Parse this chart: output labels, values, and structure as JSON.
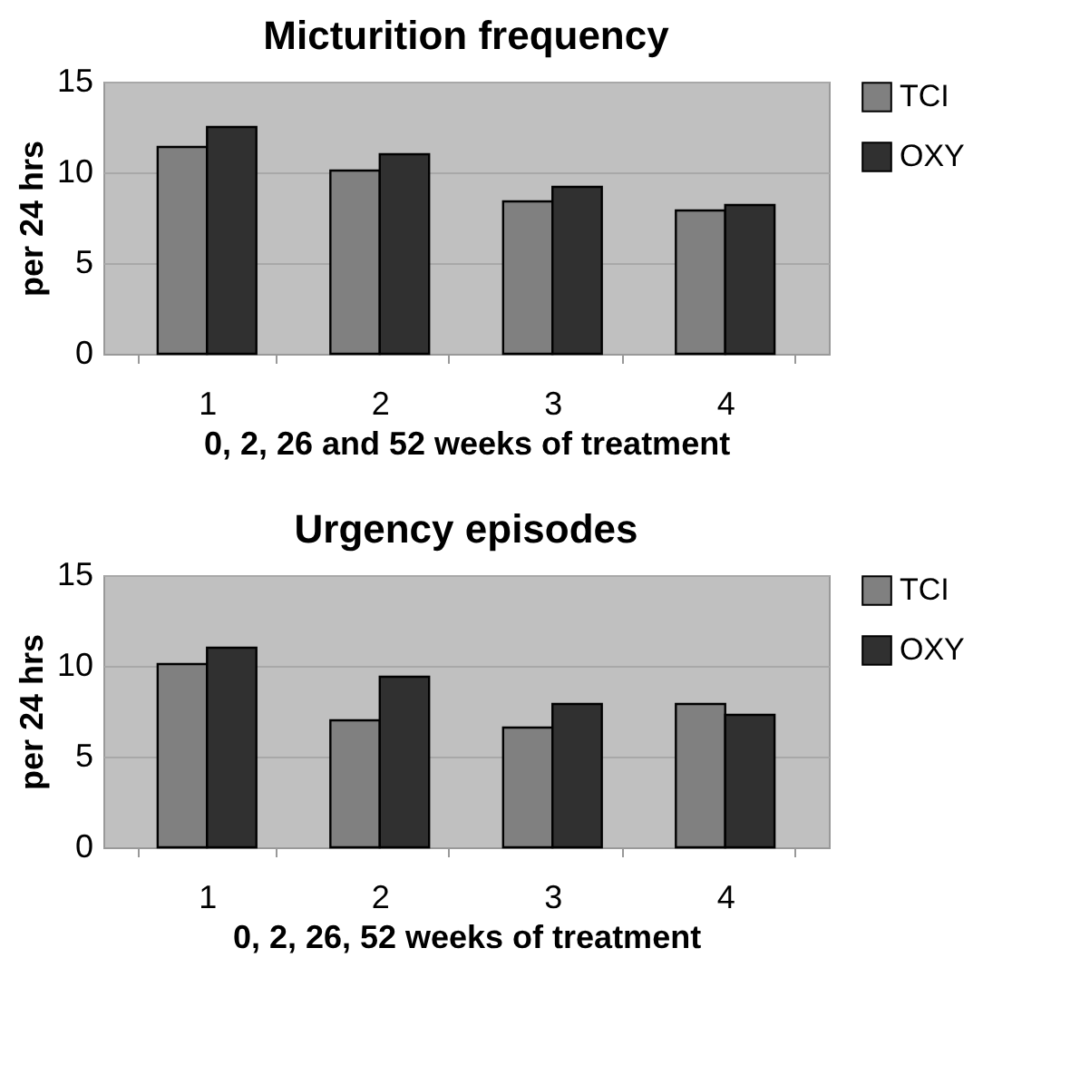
{
  "chart_data": [
    {
      "type": "bar",
      "title": "Micturition frequency",
      "xlabel": "0, 2, 26 and 52 weeks of treatment",
      "ylabel": "per 24 hrs",
      "categories": [
        "1",
        "2",
        "3",
        "4"
      ],
      "series": [
        {
          "name": "TCI",
          "color": "#808080",
          "values": [
            11.4,
            10.1,
            8.4,
            7.9
          ]
        },
        {
          "name": "OXY",
          "color": "#303030",
          "values": [
            12.5,
            11.0,
            9.2,
            8.2
          ]
        }
      ],
      "ylim": [
        0,
        15
      ],
      "yticks": [
        0,
        5,
        10,
        15
      ],
      "grid": "y",
      "legend": "top right"
    },
    {
      "type": "bar",
      "title": "Urgency episodes",
      "xlabel": "0, 2, 26, 52 weeks of treatment",
      "ylabel": "per 24 hrs",
      "categories": [
        "1",
        "2",
        "3",
        "4"
      ],
      "series": [
        {
          "name": "TCI",
          "color": "#808080",
          "values": [
            10.1,
            7.0,
            6.6,
            7.9
          ]
        },
        {
          "name": "OXY",
          "color": "#303030",
          "values": [
            11.0,
            9.4,
            7.9,
            7.3
          ]
        }
      ],
      "ylim": [
        0,
        15
      ],
      "yticks": [
        0,
        5,
        10,
        15
      ],
      "grid": "y",
      "legend": "top right"
    }
  ]
}
